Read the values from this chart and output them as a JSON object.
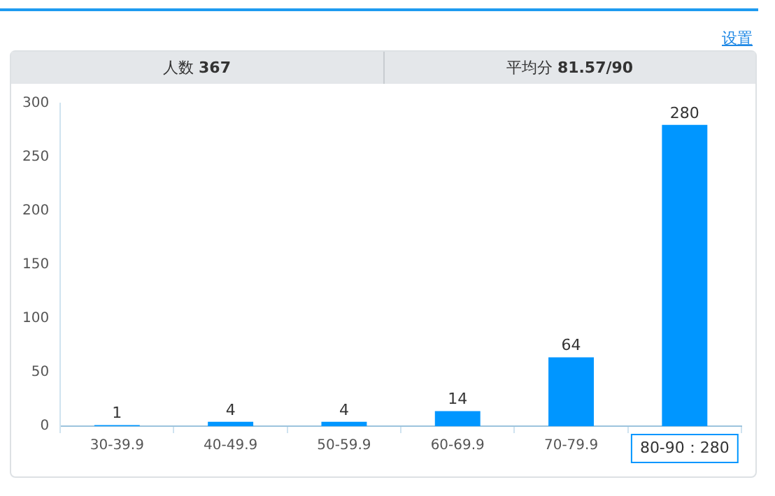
{
  "chart_data": {
    "type": "bar",
    "categories": [
      "30-39.9",
      "40-49.9",
      "50-59.9",
      "60-69.9",
      "70-79.9",
      null
    ],
    "values": [
      1,
      4,
      4,
      14,
      64,
      280
    ],
    "color": "#0096ff",
    "ylim": [
      0,
      300
    ],
    "yticks": [
      0,
      50,
      100,
      150,
      200,
      250,
      300
    ],
    "grid": false,
    "legend": false,
    "data_labels": true,
    "annotations": [
      "设置",
      "人数 367",
      "平均分 81.57/90",
      "80-90：280"
    ]
  }
}
